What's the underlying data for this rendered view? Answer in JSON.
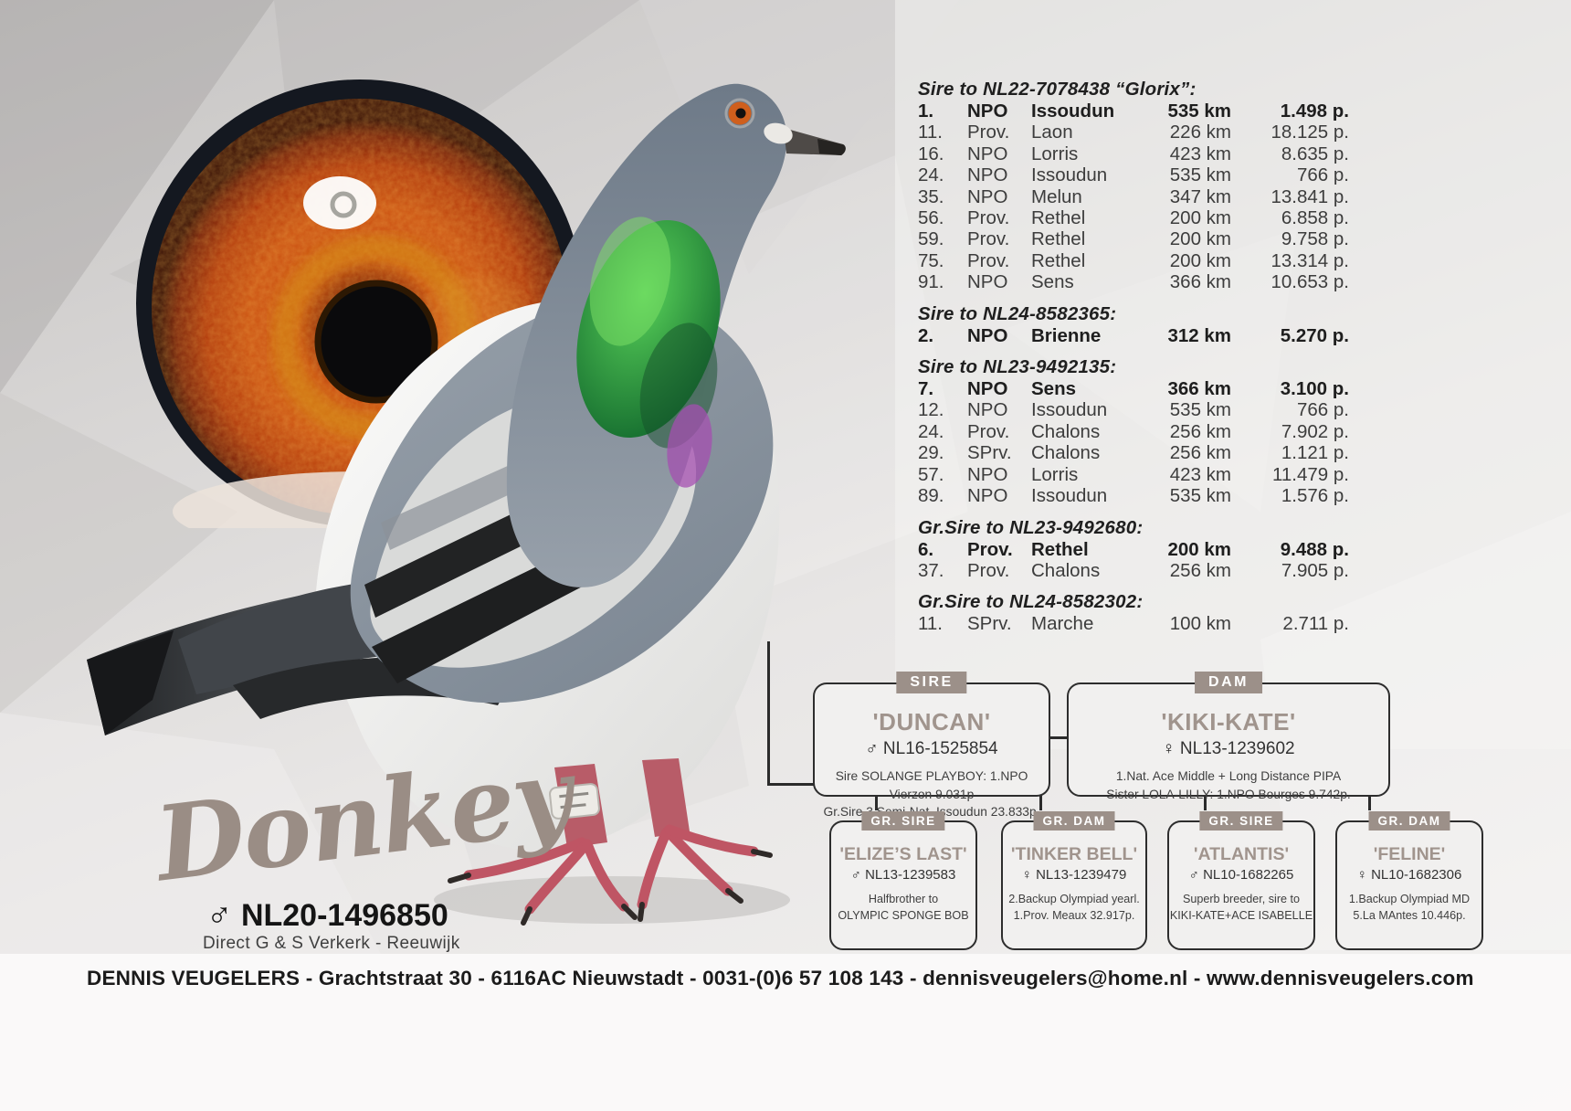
{
  "bird": {
    "name": "Donkey",
    "sex_symbol": "♂",
    "ring": "NL20-1496850",
    "origin": "Direct G & S Verkerk - Reeuwijk"
  },
  "results": {
    "sections": [
      {
        "header": "Sire to NL22-7078438 “Glorix”:",
        "rows": [
          {
            "pos": "1.",
            "org": "NPO",
            "race": "Issoudun",
            "km": "535 km",
            "pts": "1.498 p.",
            "bold": true
          },
          {
            "pos": "11.",
            "org": "Prov.",
            "race": "Laon",
            "km": "226 km",
            "pts": "18.125 p.",
            "bold": false
          },
          {
            "pos": "16.",
            "org": "NPO",
            "race": "Lorris",
            "km": "423 km",
            "pts": "8.635 p.",
            "bold": false
          },
          {
            "pos": "24.",
            "org": "NPO",
            "race": "Issoudun",
            "km": "535 km",
            "pts": "766 p.",
            "bold": false
          },
          {
            "pos": "35.",
            "org": "NPO",
            "race": "Melun",
            "km": "347 km",
            "pts": "13.841 p.",
            "bold": false
          },
          {
            "pos": "56.",
            "org": "Prov.",
            "race": "Rethel",
            "km": "200 km",
            "pts": "6.858 p.",
            "bold": false
          },
          {
            "pos": "59.",
            "org": "Prov.",
            "race": "Rethel",
            "km": "200 km",
            "pts": "9.758 p.",
            "bold": false
          },
          {
            "pos": "75.",
            "org": "Prov.",
            "race": "Rethel",
            "km": "200 km",
            "pts": "13.314 p.",
            "bold": false
          },
          {
            "pos": "91.",
            "org": "NPO",
            "race": "Sens",
            "km": "366 km",
            "pts": "10.653 p.",
            "bold": false
          }
        ]
      },
      {
        "header": "Sire to NL24-8582365:",
        "rows": [
          {
            "pos": "2.",
            "org": "NPO",
            "race": "Brienne",
            "km": "312 km",
            "pts": "5.270 p.",
            "bold": true
          }
        ]
      },
      {
        "header": "Sire to NL23-9492135:",
        "rows": [
          {
            "pos": "7.",
            "org": "NPO",
            "race": "Sens",
            "km": "366 km",
            "pts": "3.100 p.",
            "bold": true
          },
          {
            "pos": "12.",
            "org": "NPO",
            "race": "Issoudun",
            "km": "535 km",
            "pts": "766 p.",
            "bold": false
          },
          {
            "pos": "24.",
            "org": "Prov.",
            "race": "Chalons",
            "km": "256 km",
            "pts": "7.902 p.",
            "bold": false
          },
          {
            "pos": "29.",
            "org": "SPrv.",
            "race": "Chalons",
            "km": "256 km",
            "pts": "1.121 p.",
            "bold": false
          },
          {
            "pos": "57.",
            "org": "NPO",
            "race": "Lorris",
            "km": "423 km",
            "pts": "11.479 p.",
            "bold": false
          },
          {
            "pos": "89.",
            "org": "NPO",
            "race": "Issoudun",
            "km": "535 km",
            "pts": "1.576 p.",
            "bold": false
          }
        ]
      },
      {
        "header": "Gr.Sire to NL23-9492680:",
        "rows": [
          {
            "pos": "6.",
            "org": "Prov.",
            "race": "Rethel",
            "km": "200 km",
            "pts": "9.488 p.",
            "bold": true
          },
          {
            "pos": "37.",
            "org": "Prov.",
            "race": "Chalons",
            "km": "256 km",
            "pts": "7.905 p.",
            "bold": false
          }
        ]
      },
      {
        "header": "Gr.Sire to NL24-8582302:",
        "rows": [
          {
            "pos": "11.",
            "org": "SPrv.",
            "race": "Marche",
            "km": "100 km",
            "pts": "2.711 p.",
            "bold": false
          }
        ]
      }
    ]
  },
  "pedigree": {
    "parents": [
      {
        "tab": "SIRE",
        "name": "'DUNCAN'",
        "sex": "♂",
        "ring": "NL16-1525854",
        "lines": [
          "Sire SOLANGE PLAYBOY: 1.NPO Vierzon 9.031p",
          "Gr.Sire 3.Semi-Nat. Issoudun 23.833p."
        ]
      },
      {
        "tab": "DAM",
        "name": "'KIKI-KATE'",
        "sex": "♀",
        "ring": "NL13-1239602",
        "lines": [
          "1.Nat. Ace Middle + Long Distance PIPA",
          "Sister LOLA-LILLY: 1.NPO Bourges 9.742p."
        ]
      }
    ],
    "grandparents": [
      {
        "tab": "GR. SIRE",
        "name": "'ELIZE’S LAST'",
        "sex": "♂",
        "ring": "NL13-1239583",
        "lines": [
          "Halfbrother to",
          "OLYMPIC SPONGE BOB"
        ]
      },
      {
        "tab": "GR. DAM",
        "name": "'TINKER BELL'",
        "sex": "♀",
        "ring": "NL13-1239479",
        "lines": [
          "2.Backup Olympiad yearl.",
          "1.Prov. Meaux 32.917p."
        ]
      },
      {
        "tab": "GR. SIRE",
        "name": "'ATLANTIS'",
        "sex": "♂",
        "ring": "NL10-1682265",
        "lines": [
          "Superb breeder, sire to",
          "KIKI-KATE+ACE ISABELLE"
        ]
      },
      {
        "tab": "GR. DAM",
        "name": "'FELINE'",
        "sex": "♀",
        "ring": "NL10-1682306",
        "lines": [
          "1.Backup Olympiad MD",
          "5.La MAntes 10.446p."
        ]
      }
    ]
  },
  "footer": {
    "text": "DENNIS VEUGELERS - Grachtstraat 30 - 6116AC Nieuwstadt - 0031-(0)6 57 108 143 - dennisveugelers@home.nl - www.dennisveugelers.com"
  },
  "colors": {
    "accent_taupe": "#9c9089",
    "name_gray": "#a0948d",
    "text_dark": "#1f1f1f",
    "eye_orange": "#c2450f"
  }
}
